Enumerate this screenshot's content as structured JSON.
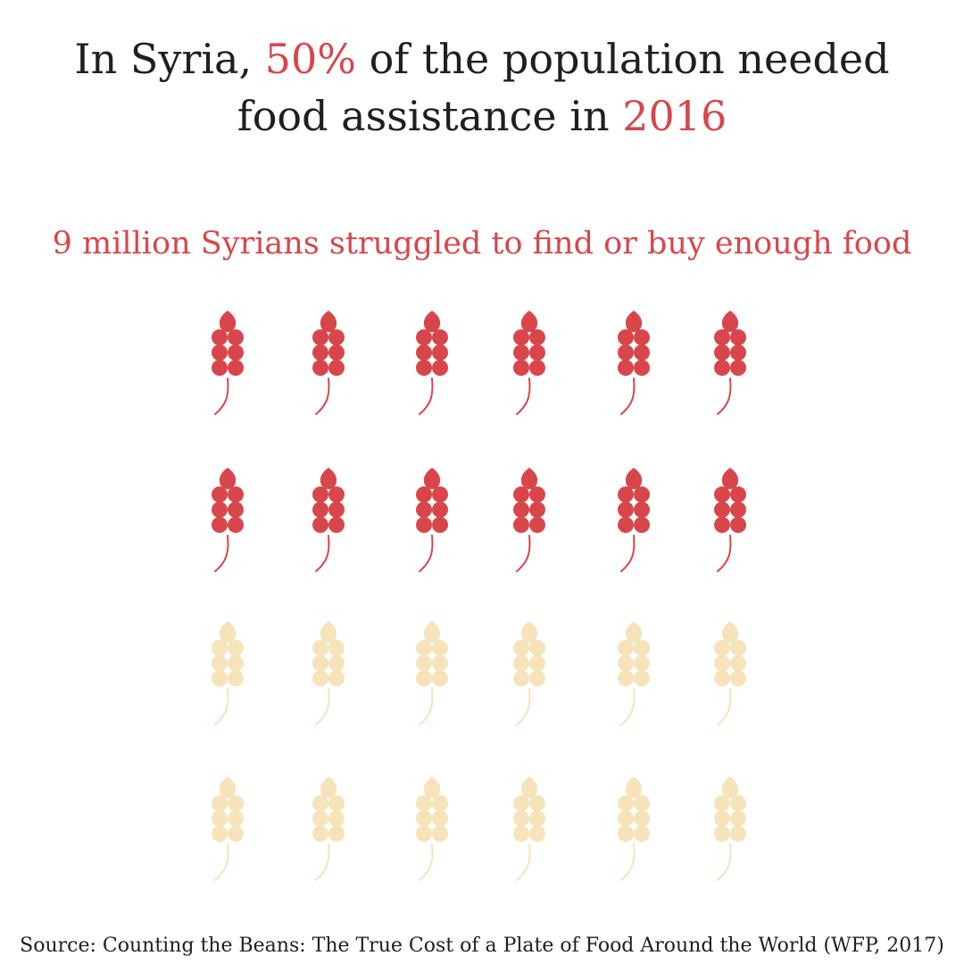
{
  "title": {
    "part1": "In Syria, ",
    "percent": "50%",
    "part2": " of the population needed food assistance in ",
    "year": "2016"
  },
  "subtitle": "9 million Syrians struggled to find or buy enough food",
  "source": "Source: Counting the Beans: The True Cost of a Plate of Food Around the World (WFP, 2017)",
  "colors": {
    "highlight": "#d8464b",
    "base": "#f7e3b9",
    "text": "#1f1f1f"
  },
  "chart_data": {
    "type": "pictogram",
    "icon": "wheat-icon",
    "rows": 4,
    "columns": 6,
    "total_icons": 24,
    "highlighted_icons": 12,
    "share_highlighted_percent": 50
  }
}
